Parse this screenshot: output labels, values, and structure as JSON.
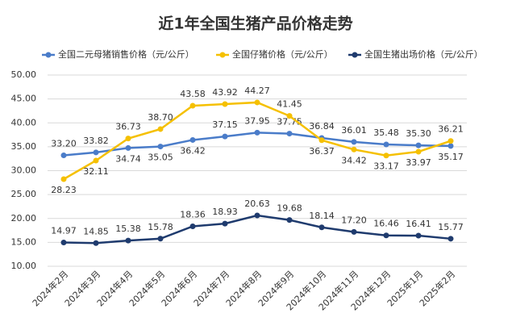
{
  "chart_data": {
    "type": "line",
    "title": "近1年全国生猪产品价格走势",
    "categories": [
      "2024年2月",
      "2024年3月",
      "2024年4月",
      "2024年5月",
      "2024年6月",
      "2024年7月",
      "2024年8月",
      "2024年9月",
      "2024年10月",
      "2024年11月",
      "2024年12月",
      "2025年1月",
      "2025年2月"
    ],
    "series": [
      {
        "name": "全国二元母猪销售价格（元/公斤）",
        "color": "#4a7cc9",
        "values": [
          33.2,
          33.82,
          34.74,
          35.05,
          36.42,
          37.15,
          37.95,
          37.75,
          36.84,
          36.01,
          35.48,
          35.3,
          35.17
        ],
        "value_labels": [
          "33.20",
          "33.82",
          "34.74",
          "35.05",
          "36.42",
          "37.15",
          "37.95",
          "37.75",
          "36.84",
          "36.01",
          "35.48",
          "35.30",
          "35.17"
        ]
      },
      {
        "name": "全国仔猪价格（元/公斤）",
        "color": "#f5c000",
        "values": [
          28.23,
          32.11,
          36.73,
          38.7,
          43.58,
          43.92,
          44.27,
          41.45,
          36.37,
          34.42,
          33.17,
          33.97,
          36.21
        ],
        "value_labels": [
          "28.23",
          "32.11",
          "36.73",
          "38.70",
          "43.58",
          "43.92",
          "44.27",
          "41.45",
          "36.37",
          "34.42",
          "33.17",
          "33.97",
          "36.21"
        ]
      },
      {
        "name": "全国生猪出场价格（元/公斤）",
        "color": "#1f3b6e",
        "values": [
          14.97,
          14.85,
          15.38,
          15.78,
          18.36,
          18.93,
          20.63,
          19.68,
          18.14,
          17.2,
          16.46,
          16.41,
          15.77
        ],
        "value_labels": [
          "14.97",
          "14.85",
          "15.38",
          "15.78",
          "18.36",
          "18.93",
          "20.63",
          "19.68",
          "18.14",
          "17.20",
          "16.46",
          "16.41",
          "15.77"
        ]
      }
    ],
    "ylim": [
      10,
      50
    ],
    "yticks": [
      {
        "value": 10,
        "label": "10.00"
      },
      {
        "value": 15,
        "label": "15.00"
      },
      {
        "value": 20,
        "label": "20.00"
      },
      {
        "value": 25,
        "label": "25.00"
      },
      {
        "value": 30,
        "label": "30.00"
      },
      {
        "value": 35,
        "label": "35.00"
      },
      {
        "value": 40,
        "label": "40.00"
      },
      {
        "value": 45,
        "label": "45.00"
      },
      {
        "value": 50,
        "label": "50.00"
      }
    ],
    "grid": true
  }
}
